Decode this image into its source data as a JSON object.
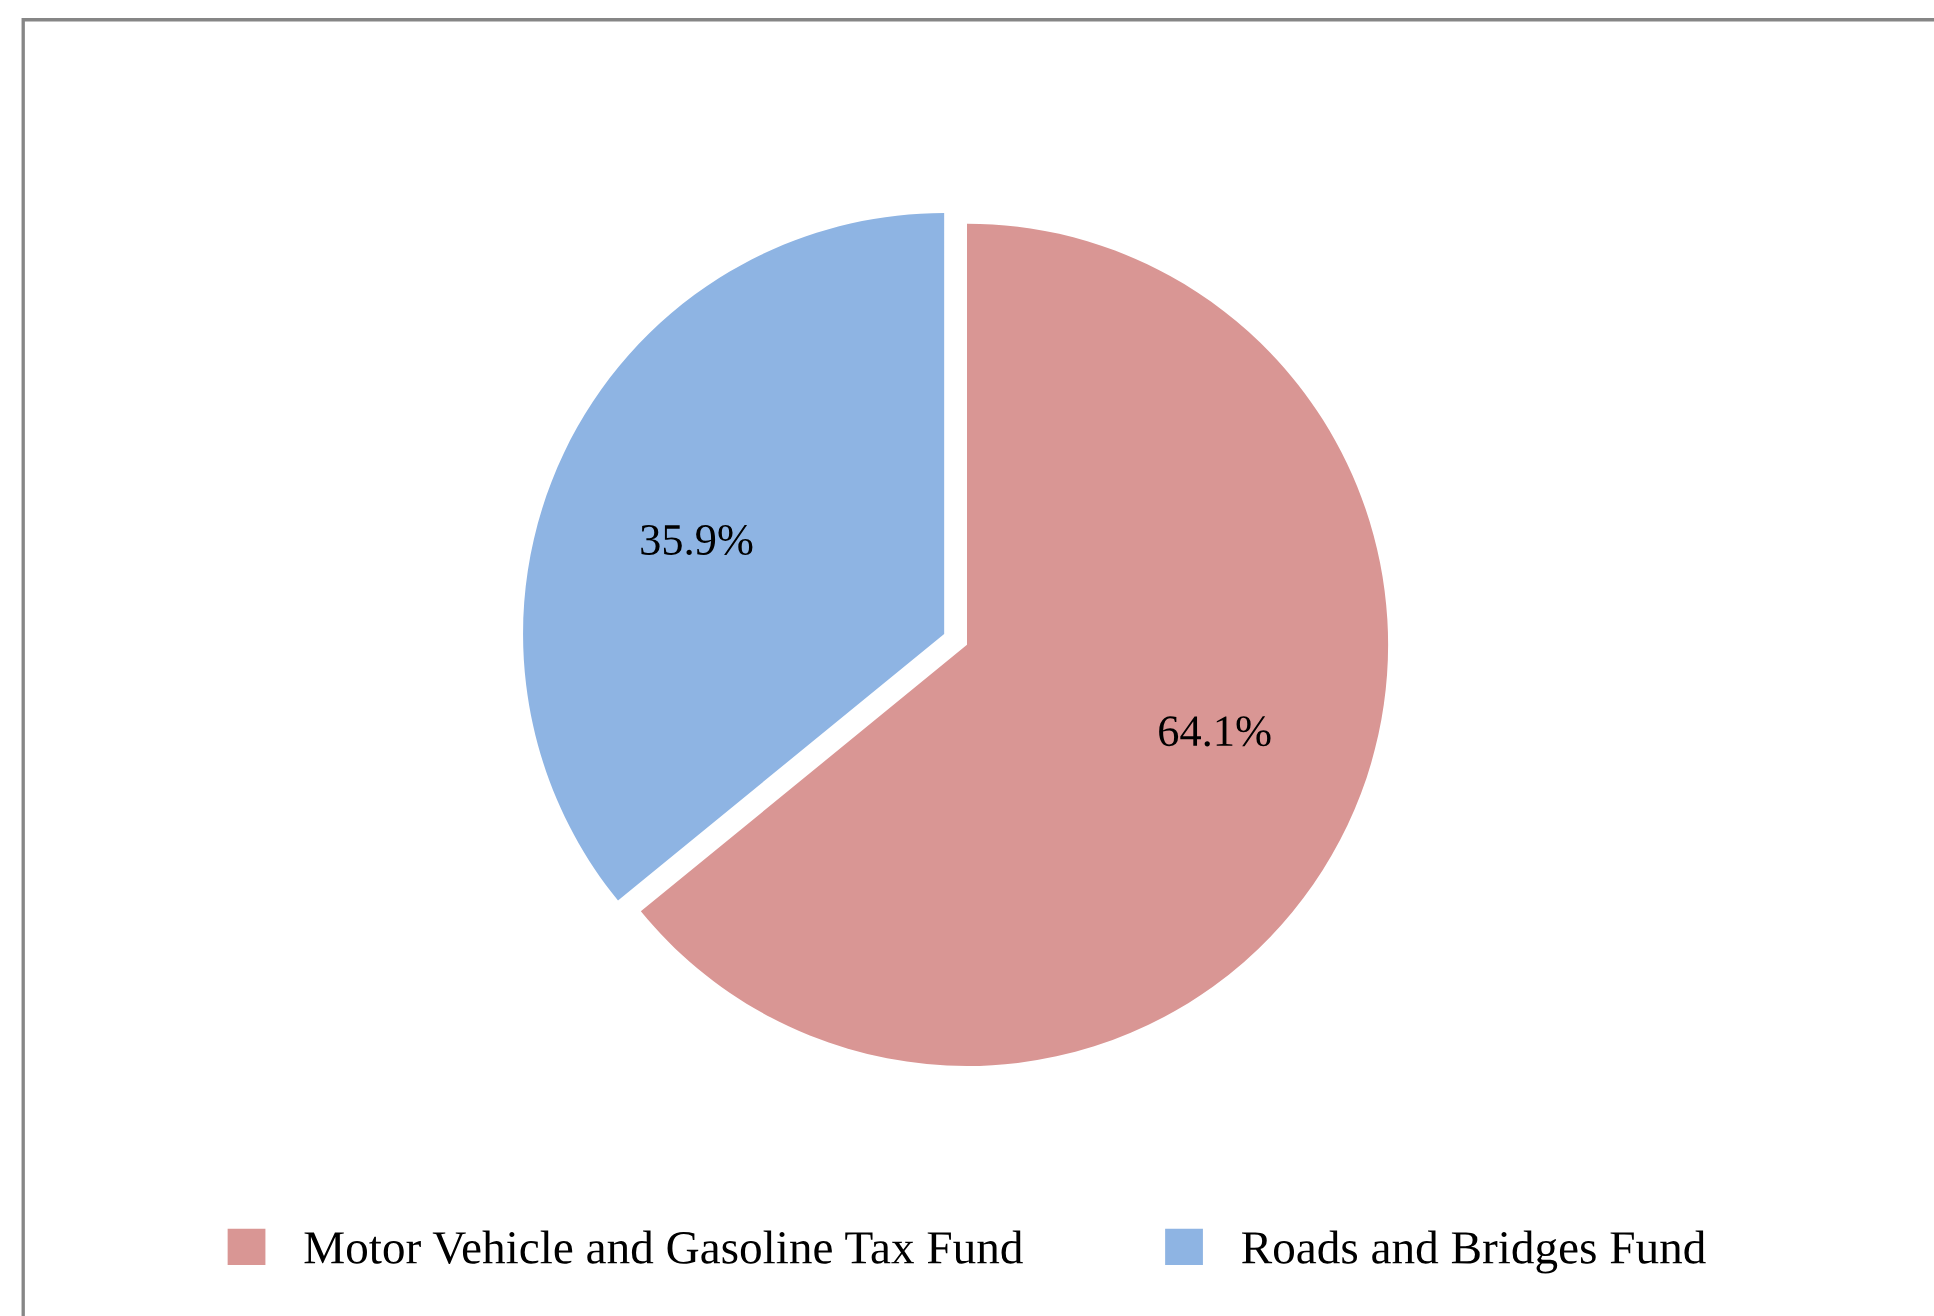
{
  "chart_data": {
    "type": "pie",
    "categories": [
      "Motor Vehicle and Gasoline Tax Fund",
      "Roads and Bridges Fund"
    ],
    "values": [
      64.1,
      35.9
    ],
    "colors": [
      "#d99694",
      "#8eb4e3"
    ],
    "value_labels": [
      "64.1%",
      "35.9%"
    ],
    "legend": "bottom"
  }
}
